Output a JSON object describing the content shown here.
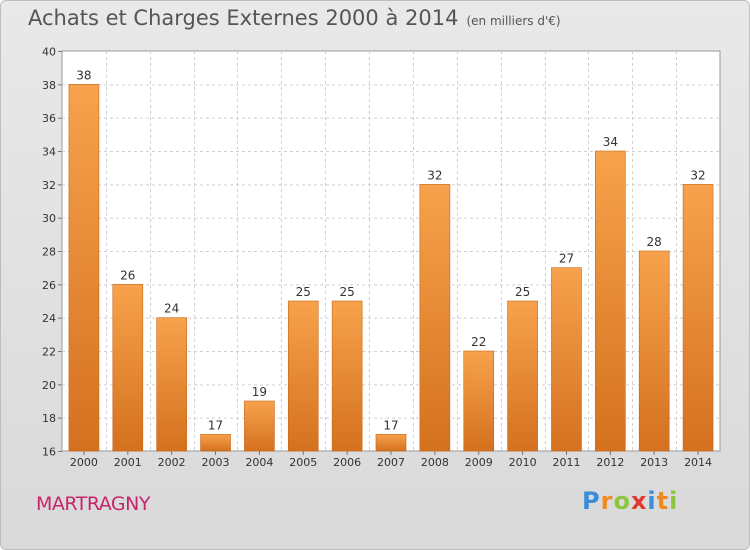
{
  "chart_data": {
    "type": "bar",
    "title": "Achats et Charges Externes 2000 à 2014",
    "subtitle": "(en milliers d'€)",
    "categories": [
      "2000",
      "2001",
      "2002",
      "2003",
      "2004",
      "2005",
      "2006",
      "2007",
      "2008",
      "2009",
      "2010",
      "2011",
      "2012",
      "2013",
      "2014"
    ],
    "values": [
      38,
      26,
      24,
      17,
      19,
      25,
      25,
      17,
      32,
      22,
      25,
      27,
      34,
      28,
      32
    ],
    "ylim": [
      16,
      40
    ],
    "yticks": [
      16,
      18,
      20,
      22,
      24,
      26,
      28,
      30,
      32,
      34,
      36,
      38,
      40
    ],
    "xlabel": "",
    "ylabel": "",
    "grid": true,
    "bar_color": "#f0902c",
    "bar_color_dark": "#d46e1c"
  },
  "footer": {
    "town": "MARTRAGNY",
    "logo_letters": [
      {
        "char": "P",
        "color": "#3a8dd8"
      },
      {
        "char": "r",
        "color": "#f08a1c"
      },
      {
        "char": "o",
        "color": "#8cc63f"
      },
      {
        "char": "x",
        "color": "#e23a2a"
      },
      {
        "char": "i",
        "color": "#3a8dd8"
      },
      {
        "char": "t",
        "color": "#f08a1c"
      },
      {
        "char": "i",
        "color": "#8cc63f"
      }
    ]
  }
}
